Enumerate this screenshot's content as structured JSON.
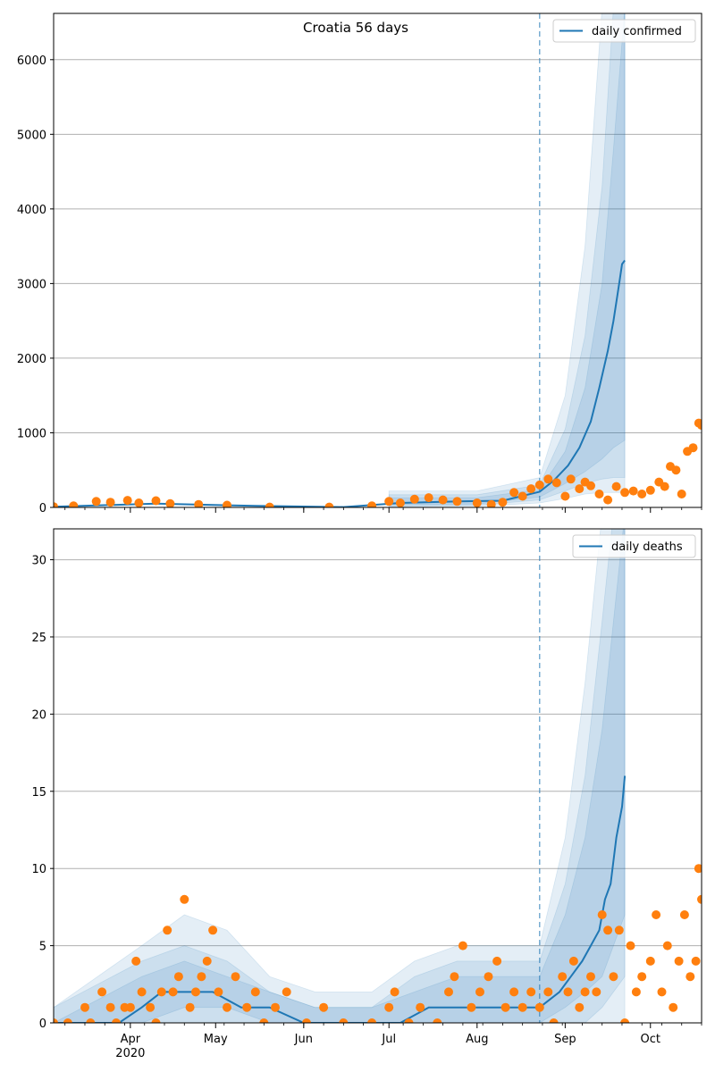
{
  "figure": {
    "title": "Croatia 56 days"
  },
  "colors": {
    "model": "#1f77b4",
    "observed": "#ff7f0e",
    "grid": "#b0b0b0"
  },
  "x_axis": {
    "months": [
      {
        "label": "Apr",
        "date": "2020-04-01"
      },
      {
        "label": "May",
        "date": "2020-05-01"
      },
      {
        "label": "Jun",
        "date": "2020-06-01"
      },
      {
        "label": "Jul",
        "date": "2020-07-01"
      },
      {
        "label": "Aug",
        "date": "2020-08-01"
      },
      {
        "label": "Sep",
        "date": "2020-09-01"
      },
      {
        "label": "Oct",
        "date": "2020-10-01"
      }
    ],
    "year_label": "2020",
    "range": [
      "2020-03-05",
      "2020-10-19"
    ]
  },
  "chart_data": [
    {
      "type": "line",
      "legend": "daily confirmed",
      "legend_position": "top-right",
      "grid": "horizontal",
      "ylim": [
        0,
        6620
      ],
      "yticks": [
        0,
        1000,
        2000,
        3000,
        4000,
        5000,
        6000
      ],
      "forecast_start": "2020-08-23",
      "model_line": {
        "x": [
          "2020-03-05",
          "2020-04-10",
          "2020-05-15",
          "2020-06-15",
          "2020-07-05",
          "2020-07-25",
          "2020-08-10",
          "2020-08-23",
          "2020-08-28",
          "2020-09-02",
          "2020-09-06",
          "2020-09-10",
          "2020-09-13",
          "2020-09-16",
          "2020-09-18",
          "2020-09-20",
          "2020-09-21",
          "2020-09-22"
        ],
        "y": [
          10,
          50,
          20,
          5,
          60,
          80,
          90,
          210,
          360,
          560,
          800,
          1150,
          1600,
          2100,
          2500,
          3000,
          3260,
          3310
        ]
      },
      "bands": [
        {
          "x": [
            "2020-07-01",
            "2020-08-01",
            "2020-08-23",
            "2020-09-01",
            "2020-09-08",
            "2020-09-14",
            "2020-09-18",
            "2020-09-22"
          ],
          "lower": [
            10,
            15,
            60,
            120,
            180,
            200,
            200,
            200
          ],
          "upper": [
            220,
            220,
            400,
            1500,
            3500,
            6700,
            6700,
            6700
          ]
        },
        {
          "x": [
            "2020-07-01",
            "2020-08-01",
            "2020-08-23",
            "2020-09-01",
            "2020-09-08",
            "2020-09-14",
            "2020-09-18",
            "2020-09-22"
          ],
          "lower": [
            20,
            30,
            100,
            220,
            320,
            380,
            400,
            400
          ],
          "upper": [
            170,
            170,
            300,
            1050,
            2300,
            4300,
            6700,
            6700
          ]
        },
        {
          "x": [
            "2020-07-01",
            "2020-08-01",
            "2020-08-23",
            "2020-09-01",
            "2020-09-08",
            "2020-09-14",
            "2020-09-18",
            "2020-09-22"
          ],
          "lower": [
            35,
            45,
            140,
            320,
            480,
            650,
            800,
            900
          ],
          "upper": [
            130,
            130,
            240,
            750,
            1600,
            3000,
            4800,
            6700
          ]
        }
      ],
      "observed": {
        "x": [
          "2020-03-05",
          "2020-03-12",
          "2020-03-20",
          "2020-03-25",
          "2020-03-31",
          "2020-04-04",
          "2020-04-10",
          "2020-04-15",
          "2020-04-25",
          "2020-05-05",
          "2020-05-20",
          "2020-06-10",
          "2020-06-25",
          "2020-07-01",
          "2020-07-05",
          "2020-07-10",
          "2020-07-15",
          "2020-07-20",
          "2020-07-25",
          "2020-08-01",
          "2020-08-06",
          "2020-08-10",
          "2020-08-14",
          "2020-08-17",
          "2020-08-20",
          "2020-08-23",
          "2020-08-26",
          "2020-08-29",
          "2020-09-01",
          "2020-09-03",
          "2020-09-06",
          "2020-09-08",
          "2020-09-10",
          "2020-09-13",
          "2020-09-16",
          "2020-09-19",
          "2020-09-22",
          "2020-09-25",
          "2020-09-28",
          "2020-10-01",
          "2020-10-04",
          "2020-10-06",
          "2020-10-08",
          "2020-10-10",
          "2020-10-12",
          "2020-10-14",
          "2020-10-16",
          "2020-10-18",
          "2020-10-19"
        ],
        "y": [
          10,
          20,
          80,
          70,
          95,
          60,
          90,
          50,
          40,
          30,
          5,
          5,
          20,
          80,
          60,
          110,
          130,
          100,
          80,
          60,
          40,
          70,
          200,
          150,
          250,
          300,
          380,
          330,
          150,
          380,
          250,
          340,
          290,
          180,
          100,
          280,
          200,
          220,
          180,
          230,
          340,
          280,
          550,
          500,
          180,
          750,
          800,
          1130,
          1100
        ]
      }
    },
    {
      "type": "line",
      "legend": "daily deaths",
      "legend_position": "top-right",
      "grid": "horizontal",
      "ylim": [
        0,
        32
      ],
      "yticks": [
        0,
        5,
        10,
        15,
        20,
        25,
        30
      ],
      "forecast_start": "2020-08-23",
      "model_line": {
        "x": [
          "2020-03-05",
          "2020-03-28",
          "2020-04-05",
          "2020-04-12",
          "2020-04-22",
          "2020-04-30",
          "2020-05-10",
          "2020-05-20",
          "2020-06-01",
          "2020-06-20",
          "2020-07-05",
          "2020-07-15",
          "2020-07-25",
          "2020-08-05",
          "2020-08-15",
          "2020-08-23",
          "2020-08-30",
          "2020-09-03",
          "2020-09-07",
          "2020-09-10",
          "2020-09-13",
          "2020-09-15",
          "2020-09-17",
          "2020-09-19",
          "2020-09-21",
          "2020-09-22"
        ],
        "y": [
          0,
          0,
          1,
          2,
          2,
          2,
          1,
          1,
          0,
          0,
          0,
          1,
          1,
          1,
          1,
          1,
          2,
          3,
          4,
          5,
          6,
          8,
          9,
          12,
          14,
          16
        ]
      },
      "bands": [
        {
          "x": [
            "2020-03-05",
            "2020-04-05",
            "2020-04-20",
            "2020-05-05",
            "2020-05-20",
            "2020-06-05",
            "2020-06-25",
            "2020-07-10",
            "2020-07-25",
            "2020-08-10",
            "2020-08-23",
            "2020-09-01",
            "2020-09-08",
            "2020-09-14",
            "2020-09-18",
            "2020-09-22"
          ],
          "lower": [
            0,
            0,
            0,
            0,
            0,
            0,
            0,
            0,
            0,
            0,
            0,
            0,
            0,
            0,
            0,
            0
          ],
          "upper": [
            1,
            5,
            7,
            6,
            3,
            2,
            2,
            4,
            5,
            5,
            5,
            12,
            22,
            33,
            33,
            33
          ]
        },
        {
          "x": [
            "2020-03-05",
            "2020-04-05",
            "2020-04-20",
            "2020-05-05",
            "2020-05-20",
            "2020-06-05",
            "2020-06-25",
            "2020-07-10",
            "2020-07-25",
            "2020-08-10",
            "2020-08-23",
            "2020-09-01",
            "2020-09-08",
            "2020-09-14",
            "2020-09-18",
            "2020-09-22"
          ],
          "lower": [
            0,
            0,
            0,
            0,
            0,
            0,
            0,
            0,
            0,
            0,
            0,
            0,
            0,
            1,
            2,
            3
          ],
          "upper": [
            1,
            4,
            5,
            4,
            2,
            1,
            1,
            3,
            4,
            4,
            4,
            9,
            16,
            26,
            33,
            33
          ]
        },
        {
          "x": [
            "2020-03-05",
            "2020-04-05",
            "2020-04-20",
            "2020-05-05",
            "2020-05-20",
            "2020-06-05",
            "2020-06-25",
            "2020-07-10",
            "2020-07-25",
            "2020-08-10",
            "2020-08-23",
            "2020-09-01",
            "2020-09-08",
            "2020-09-14",
            "2020-09-18",
            "2020-09-22"
          ],
          "lower": [
            0,
            0,
            1,
            1,
            0,
            0,
            0,
            0,
            0,
            0,
            0,
            1,
            2,
            3,
            5,
            7
          ],
          "upper": [
            0,
            3,
            4,
            3,
            2,
            1,
            1,
            2,
            3,
            3,
            3,
            7,
            12,
            19,
            26,
            33
          ]
        }
      ],
      "observed": {
        "x": [
          "2020-03-05",
          "2020-03-10",
          "2020-03-16",
          "2020-03-18",
          "2020-03-22",
          "2020-03-25",
          "2020-03-27",
          "2020-03-30",
          "2020-04-01",
          "2020-04-03",
          "2020-04-05",
          "2020-04-08",
          "2020-04-10",
          "2020-04-12",
          "2020-04-14",
          "2020-04-16",
          "2020-04-18",
          "2020-04-20",
          "2020-04-22",
          "2020-04-24",
          "2020-04-26",
          "2020-04-28",
          "2020-04-30",
          "2020-05-02",
          "2020-05-05",
          "2020-05-08",
          "2020-05-12",
          "2020-05-15",
          "2020-05-18",
          "2020-05-22",
          "2020-05-26",
          "2020-06-02",
          "2020-06-08",
          "2020-06-15",
          "2020-06-25",
          "2020-07-01",
          "2020-07-03",
          "2020-07-08",
          "2020-07-12",
          "2020-07-18",
          "2020-07-22",
          "2020-07-24",
          "2020-07-27",
          "2020-07-30",
          "2020-08-02",
          "2020-08-05",
          "2020-08-08",
          "2020-08-11",
          "2020-08-14",
          "2020-08-17",
          "2020-08-20",
          "2020-08-23",
          "2020-08-26",
          "2020-08-28",
          "2020-08-31",
          "2020-09-02",
          "2020-09-04",
          "2020-09-06",
          "2020-09-08",
          "2020-09-10",
          "2020-09-12",
          "2020-09-14",
          "2020-09-16",
          "2020-09-18",
          "2020-09-20",
          "2020-09-22",
          "2020-09-24",
          "2020-09-26",
          "2020-09-28",
          "2020-10-01",
          "2020-10-03",
          "2020-10-05",
          "2020-10-07",
          "2020-10-09",
          "2020-10-11",
          "2020-10-13",
          "2020-10-15",
          "2020-10-17",
          "2020-10-18",
          "2020-10-19"
        ],
        "y": [
          0,
          0,
          1,
          0,
          2,
          1,
          0,
          1,
          1,
          4,
          2,
          1,
          0,
          2,
          6,
          2,
          3,
          8,
          1,
          2,
          3,
          4,
          6,
          2,
          1,
          3,
          1,
          2,
          0,
          1,
          2,
          0,
          1,
          0,
          0,
          1,
          2,
          0,
          1,
          0,
          2,
          3,
          5,
          1,
          2,
          3,
          4,
          1,
          2,
          1,
          2,
          1,
          2,
          0,
          3,
          2,
          4,
          1,
          2,
          3,
          2,
          7,
          6,
          3,
          6,
          0,
          5,
          2,
          3,
          4,
          7,
          2,
          5,
          1,
          4,
          7,
          3,
          4,
          10,
          8
        ]
      }
    }
  ]
}
